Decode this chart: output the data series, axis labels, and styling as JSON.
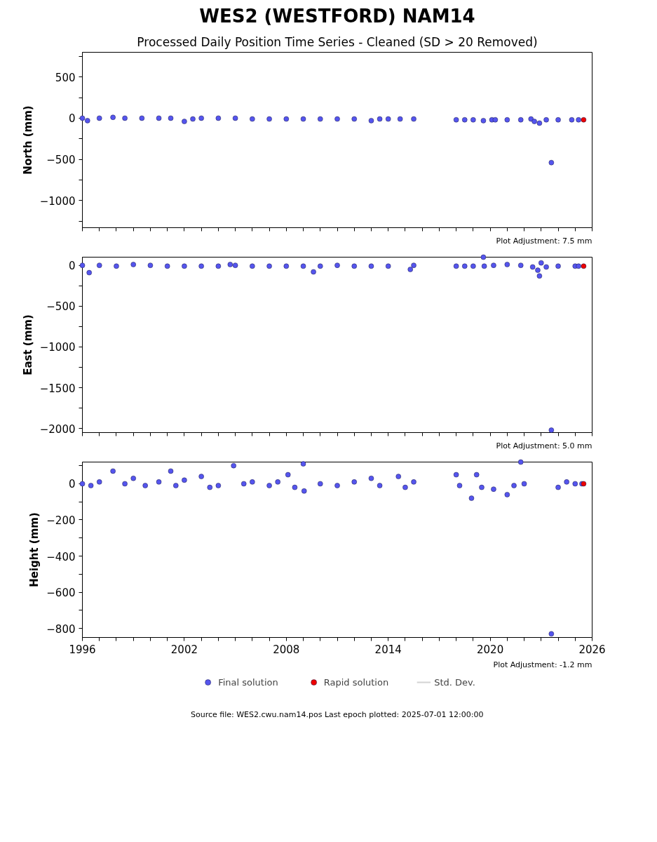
{
  "chart_data": [
    {
      "type": "scatter",
      "title": "WES2 (WESTFORD) NAM14",
      "subtitle": "Processed Daily Position Time Series - Cleaned (SD > 20 Removed)",
      "ylabel": "North (mm)",
      "annotations": [
        "Plot Adjustment: 7.5 mm"
      ],
      "marker": "circle",
      "tick_labels": "y",
      "xlim": [
        1996,
        2026
      ],
      "xticks": [
        1996,
        {
          "value": 1997,
          "label": null
        },
        {
          "value": 1998,
          "label": null
        },
        {
          "value": 1999,
          "label": null
        },
        {
          "value": 2000,
          "label": null
        },
        {
          "value": 2001,
          "label": null
        },
        2002,
        {
          "value": 2003,
          "label": null
        },
        {
          "value": 2004,
          "label": null
        },
        {
          "value": 2005,
          "label": null
        },
        {
          "value": 2006,
          "label": null
        },
        {
          "value": 2007,
          "label": null
        },
        2008,
        {
          "value": 2009,
          "label": null
        },
        {
          "value": 2010,
          "label": null
        },
        {
          "value": 2011,
          "label": null
        },
        {
          "value": 2012,
          "label": null
        },
        {
          "value": 2013,
          "label": null
        },
        2014,
        {
          "value": 2015,
          "label": null
        },
        {
          "value": 2016,
          "label": null
        },
        {
          "value": 2017,
          "label": null
        },
        {
          "value": 2018,
          "label": null
        },
        {
          "value": 2019,
          "label": null
        },
        2020,
        {
          "value": 2021,
          "label": null
        },
        {
          "value": 2022,
          "label": null
        },
        {
          "value": 2023,
          "label": null
        },
        {
          "value": 2024,
          "label": null
        },
        {
          "value": 2025,
          "label": null
        },
        2026
      ],
      "ylim": [
        -1330,
        800
      ],
      "yticks": [
        {
          "value": -1250,
          "label": null
        },
        -1000,
        {
          "value": -750,
          "label": null
        },
        -500,
        {
          "value": -250,
          "label": null
        },
        0,
        {
          "value": 250,
          "label": null
        },
        500,
        {
          "value": 750,
          "label": null
        }
      ],
      "series": [
        {
          "color": "#5555ee",
          "x": [
            1996.0,
            1996.3,
            1997.0,
            1997.8,
            1998.5,
            1999.5,
            2000.5,
            2001.2,
            2002.0,
            2002.5,
            2003.0,
            2004.0,
            2005.0,
            2006.0,
            2007.0,
            2008.0,
            2009.0,
            2010.0,
            2011.0,
            2012.0,
            2013.0,
            2013.5,
            2014.0,
            2014.7,
            2015.5,
            2018.0,
            2018.5,
            2019.0,
            2019.6,
            2020.1,
            2020.3,
            2021.0,
            2021.8,
            2022.4,
            2022.6,
            2022.9,
            2023.3,
            2023.6,
            2024.0,
            2024.8,
            2025.2
          ],
          "values": [
            0,
            -30,
            0,
            10,
            0,
            0,
            0,
            0,
            -40,
            -10,
            0,
            0,
            0,
            -10,
            -10,
            -10,
            -10,
            -10,
            -10,
            -10,
            -30,
            -10,
            -10,
            -10,
            -10,
            -20,
            -20,
            -20,
            -30,
            -20,
            -20,
            -20,
            -20,
            -10,
            -40,
            -60,
            -20,
            -540,
            -20,
            -20,
            -20
          ]
        },
        {
          "color": "#ee0000",
          "x": [
            2025.5
          ],
          "values": [
            -20
          ]
        }
      ]
    },
    {
      "type": "scatter",
      "ylabel": "East (mm)",
      "annotations": [
        "Plot Adjustment: 5.0 mm"
      ],
      "marker": "circle",
      "tick_labels": "y",
      "xlim": [
        1996,
        2026
      ],
      "xticks": [
        1996,
        {
          "value": 1997,
          "label": null
        },
        {
          "value": 1998,
          "label": null
        },
        {
          "value": 1999,
          "label": null
        },
        {
          "value": 2000,
          "label": null
        },
        {
          "value": 2001,
          "label": null
        },
        2002,
        {
          "value": 2003,
          "label": null
        },
        {
          "value": 2004,
          "label": null
        },
        {
          "value": 2005,
          "label": null
        },
        {
          "value": 2006,
          "label": null
        },
        {
          "value": 2007,
          "label": null
        },
        2008,
        {
          "value": 2009,
          "label": null
        },
        {
          "value": 2010,
          "label": null
        },
        {
          "value": 2011,
          "label": null
        },
        {
          "value": 2012,
          "label": null
        },
        {
          "value": 2013,
          "label": null
        },
        2014,
        {
          "value": 2015,
          "label": null
        },
        {
          "value": 2016,
          "label": null
        },
        {
          "value": 2017,
          "label": null
        },
        {
          "value": 2018,
          "label": null
        },
        {
          "value": 2019,
          "label": null
        },
        2020,
        {
          "value": 2021,
          "label": null
        },
        {
          "value": 2022,
          "label": null
        },
        {
          "value": 2023,
          "label": null
        },
        {
          "value": 2024,
          "label": null
        },
        {
          "value": 2025,
          "label": null
        },
        2026
      ],
      "ylim": [
        -2050,
        100
      ],
      "yticks": [
        -2000,
        {
          "value": -1750,
          "label": null
        },
        -1500,
        {
          "value": -1250,
          "label": null
        },
        -1000,
        {
          "value": -750,
          "label": null
        },
        -500,
        {
          "value": -250,
          "label": null
        },
        0
      ],
      "series": [
        {
          "color": "#5555ee",
          "x": [
            1996.0,
            1996.4,
            1997.0,
            1998.0,
            1999.0,
            2000.0,
            2001.0,
            2002.0,
            2003.0,
            2004.0,
            2004.7,
            2005.0,
            2006.0,
            2007.0,
            2008.0,
            2009.0,
            2009.6,
            2010.0,
            2011.0,
            2012.0,
            2013.0,
            2014.0,
            2015.3,
            2015.5,
            2018.0,
            2018.5,
            2019.0,
            2019.6,
            2019.65,
            2020.2,
            2021.0,
            2021.8,
            2022.5,
            2022.8,
            2022.9,
            2023.0,
            2023.3,
            2023.6,
            2024.0,
            2025.0,
            2025.2
          ],
          "values": [
            0,
            -90,
            0,
            -10,
            10,
            0,
            -10,
            -10,
            -10,
            -10,
            10,
            0,
            -10,
            -10,
            -10,
            -10,
            -80,
            -10,
            0,
            -10,
            -10,
            -10,
            -50,
            0,
            -10,
            -10,
            -10,
            100,
            -10,
            0,
            10,
            0,
            -20,
            -60,
            -130,
            30,
            -20,
            -2020,
            -10,
            -10,
            -10
          ]
        },
        {
          "color": "#ee0000",
          "x": [
            2025.5
          ],
          "values": [
            -10
          ]
        }
      ]
    },
    {
      "type": "scatter",
      "ylabel": "Height (mm)",
      "annotations": [
        "Plot Adjustment: -1.2 mm",
        "Source file: WES2.cwu.nam14.pos  Last epoch plotted: 2025-07-01 12:00:00"
      ],
      "marker": "circle",
      "legend": "bottom",
      "xlim": [
        1996,
        2026
      ],
      "xticks": [
        1996,
        {
          "value": 1997,
          "label": null
        },
        {
          "value": 1998,
          "label": null
        },
        {
          "value": 1999,
          "label": null
        },
        {
          "value": 2000,
          "label": null
        },
        {
          "value": 2001,
          "label": null
        },
        2002,
        {
          "value": 2003,
          "label": null
        },
        {
          "value": 2004,
          "label": null
        },
        {
          "value": 2005,
          "label": null
        },
        {
          "value": 2006,
          "label": null
        },
        {
          "value": 2007,
          "label": null
        },
        2008,
        {
          "value": 2009,
          "label": null
        },
        {
          "value": 2010,
          "label": null
        },
        {
          "value": 2011,
          "label": null
        },
        {
          "value": 2012,
          "label": null
        },
        {
          "value": 2013,
          "label": null
        },
        2014,
        {
          "value": 2015,
          "label": null
        },
        {
          "value": 2016,
          "label": null
        },
        {
          "value": 2017,
          "label": null
        },
        {
          "value": 2018,
          "label": null
        },
        {
          "value": 2019,
          "label": null
        },
        2020,
        {
          "value": 2021,
          "label": null
        },
        {
          "value": 2022,
          "label": null
        },
        {
          "value": 2023,
          "label": null
        },
        {
          "value": 2024,
          "label": null
        },
        {
          "value": 2025,
          "label": null
        },
        2026
      ],
      "ylim": [
        -850,
        120
      ],
      "yticks": [
        -800,
        {
          "value": -700,
          "label": null
        },
        -600,
        {
          "value": -500,
          "label": null
        },
        -400,
        {
          "value": -300,
          "label": null
        },
        -200,
        {
          "value": -100,
          "label": null
        },
        0,
        {
          "value": 100,
          "label": null
        }
      ],
      "series": [
        {
          "name": "Final solution",
          "color": "#5555ee",
          "x": [
            1996.0,
            1996.5,
            1997.0,
            1997.8,
            1998.5,
            1999.0,
            1999.7,
            2000.5,
            2001.2,
            2001.5,
            2002.0,
            2003.0,
            2003.5,
            2004.0,
            2004.9,
            2005.5,
            2006.0,
            2007.0,
            2007.5,
            2008.1,
            2008.5,
            2009.0,
            2009.05,
            2010.0,
            2011.0,
            2012.0,
            2013.0,
            2013.5,
            2014.6,
            2015.0,
            2015.5,
            2018.0,
            2018.2,
            2018.9,
            2019.2,
            2019.5,
            2020.2,
            2021.0,
            2021.4,
            2021.8,
            2022.0,
            2023.6,
            2024.0,
            2024.5,
            2025.0,
            2025.4
          ],
          "values": [
            0,
            -10,
            10,
            70,
            0,
            30,
            -10,
            10,
            70,
            -10,
            20,
            40,
            -20,
            -10,
            100,
            0,
            10,
            -10,
            10,
            50,
            -20,
            110,
            -40,
            0,
            -10,
            10,
            30,
            -10,
            40,
            -20,
            10,
            50,
            -10,
            -80,
            50,
            -20,
            -30,
            -60,
            -10,
            120,
            0,
            -830,
            -20,
            10,
            0,
            0
          ]
        },
        {
          "name": "Rapid solution",
          "color": "#ee0000",
          "x": [
            2025.5
          ],
          "values": [
            0
          ]
        },
        {
          "name": "Std. Dev.",
          "color": "#d3d3d3"
        }
      ]
    }
  ]
}
